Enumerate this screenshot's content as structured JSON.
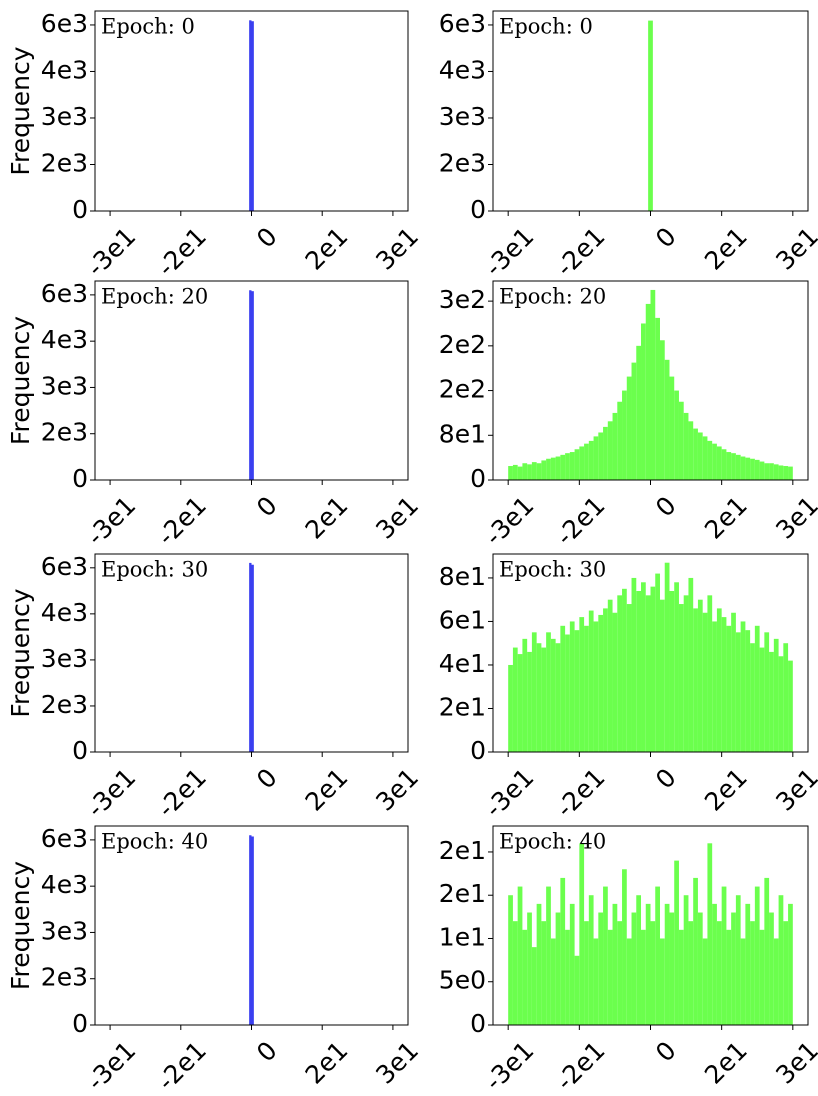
{
  "chart_data": [
    {
      "type": "histogram",
      "title": "Epoch: 0",
      "y_label": "Frequency",
      "color": "#3a3ff0",
      "bins": [
        -0.5,
        0,
        0.5
      ],
      "values": [
        6150,
        6120
      ],
      "xlim": [
        -33.2,
        33.2
      ],
      "ylim": [
        0,
        6450
      ],
      "xticks": [
        {
          "value": -30,
          "label": "-3e1"
        },
        {
          "value": -15,
          "label": "-2e1"
        },
        0,
        {
          "value": 15,
          "label": "2e1"
        },
        {
          "value": 30,
          "label": "3e1"
        }
      ],
      "yticks": [
        0,
        {
          "value": 1500,
          "label": "2e3"
        },
        {
          "value": 3000,
          "label": "3e3"
        },
        {
          "value": 4500,
          "label": "4e3"
        },
        {
          "value": 6000,
          "label": "6e3"
        }
      ]
    },
    {
      "type": "histogram",
      "title": "Epoch: 0",
      "color": "#6bff4d",
      "bins": [
        -0.5,
        0,
        0.5
      ],
      "values": [
        6140,
        6140
      ],
      "xlim": [
        -33.2,
        33.2
      ],
      "ylim": [
        0,
        6450
      ],
      "xticks": [
        {
          "value": -30,
          "label": "-3e1"
        },
        {
          "value": -15,
          "label": "-2e1"
        },
        0,
        {
          "value": 15,
          "label": "2e1"
        },
        {
          "value": 30,
          "label": "3e1"
        }
      ],
      "yticks": [
        0,
        {
          "value": 1500,
          "label": "2e3"
        },
        {
          "value": 3000,
          "label": "3e3"
        },
        {
          "value": 4500,
          "label": "4e3"
        },
        {
          "value": 6000,
          "label": "6e3"
        }
      ]
    },
    {
      "type": "histogram",
      "title": "Epoch: 20",
      "y_label": "Frequency",
      "color": "#3a3ff0",
      "bins": [
        -0.5,
        0,
        0.5
      ],
      "values": [
        6150,
        6120
      ],
      "xlim": [
        -33.2,
        33.2
      ],
      "ylim": [
        0,
        6450
      ],
      "xticks": [
        {
          "value": -30,
          "label": "-3e1"
        },
        {
          "value": -15,
          "label": "-2e1"
        },
        0,
        {
          "value": 15,
          "label": "2e1"
        },
        {
          "value": 30,
          "label": "3e1"
        }
      ],
      "yticks": [
        0,
        {
          "value": 1500,
          "label": "2e3"
        },
        {
          "value": 3000,
          "label": "3e3"
        },
        {
          "value": 4500,
          "label": "4e3"
        },
        {
          "value": 6000,
          "label": "6e3"
        }
      ]
    },
    {
      "type": "histogram",
      "title": "Epoch: 20",
      "color": "#6bff4d",
      "bins": [
        -30,
        -29,
        -28,
        -27,
        -26,
        -25,
        -24,
        -23,
        -22,
        -21,
        -20,
        -19,
        -18,
        -17,
        -16,
        -15,
        -14,
        -13,
        -12,
        -11,
        -10,
        -9,
        -8,
        -7,
        -6,
        -5,
        -4,
        -3,
        -2,
        -1,
        0,
        1,
        2,
        3,
        4,
        5,
        6,
        7,
        8,
        9,
        10,
        11,
        12,
        13,
        14,
        15,
        16,
        17,
        18,
        19,
        20,
        21,
        22,
        23,
        24,
        25,
        26,
        27,
        28,
        29,
        30
      ],
      "values": [
        25,
        27,
        24,
        30,
        28,
        32,
        30,
        35,
        38,
        40,
        42,
        45,
        48,
        50,
        55,
        60,
        65,
        70,
        78,
        85,
        95,
        105,
        120,
        140,
        160,
        185,
        210,
        240,
        280,
        315,
        340,
        290,
        250,
        215,
        185,
        160,
        140,
        120,
        105,
        92,
        85,
        78,
        70,
        65,
        60,
        55,
        50,
        48,
        45,
        42,
        40,
        38,
        36,
        33,
        30,
        30,
        28,
        26,
        25,
        24
      ],
      "xlim": [
        -33.2,
        33.2
      ],
      "ylim": [
        0,
        356
      ],
      "xticks": [
        {
          "value": -30,
          "label": "-3e1"
        },
        {
          "value": -15,
          "label": "-2e1"
        },
        0,
        {
          "value": 15,
          "label": "2e1"
        },
        {
          "value": 30,
          "label": "3e1"
        }
      ],
      "yticks": [
        0,
        {
          "value": 80,
          "label": "8e1"
        },
        {
          "value": 160,
          "label": "2e2"
        },
        {
          "value": 240,
          "label": "2e2"
        },
        {
          "value": 320,
          "label": "3e2"
        }
      ]
    },
    {
      "type": "histogram",
      "title": "Epoch: 30",
      "y_label": "Frequency",
      "color": "#3a3ff0",
      "bins": [
        -0.5,
        0,
        0.5
      ],
      "values": [
        6160,
        6100
      ],
      "xlim": [
        -33.2,
        33.2
      ],
      "ylim": [
        0,
        6450
      ],
      "xticks": [
        {
          "value": -30,
          "label": "-3e1"
        },
        {
          "value": -15,
          "label": "-2e1"
        },
        0,
        {
          "value": 15,
          "label": "2e1"
        },
        {
          "value": 30,
          "label": "3e1"
        }
      ],
      "yticks": [
        0,
        {
          "value": 1500,
          "label": "2e3"
        },
        {
          "value": 3000,
          "label": "3e3"
        },
        {
          "value": 4500,
          "label": "4e3"
        },
        {
          "value": 6000,
          "label": "6e3"
        }
      ]
    },
    {
      "type": "histogram",
      "title": "Epoch: 30",
      "color": "#6bff4d",
      "bins": [
        -30,
        -29,
        -28,
        -27,
        -26,
        -25,
        -24,
        -23,
        -22,
        -21,
        -20,
        -19,
        -18,
        -17,
        -16,
        -15,
        -14,
        -13,
        -12,
        -11,
        -10,
        -9,
        -8,
        -7,
        -6,
        -5,
        -4,
        -3,
        -2,
        -1,
        0,
        1,
        2,
        3,
        4,
        5,
        6,
        7,
        8,
        9,
        10,
        11,
        12,
        13,
        14,
        15,
        16,
        17,
        18,
        19,
        20,
        21,
        22,
        23,
        24,
        25,
        26,
        27,
        28,
        29,
        30
      ],
      "values": [
        40,
        48,
        45,
        52,
        46,
        55,
        50,
        48,
        55,
        52,
        50,
        58,
        54,
        60,
        56,
        62,
        58,
        65,
        60,
        63,
        66,
        70,
        64,
        72,
        75,
        68,
        80,
        74,
        78,
        72,
        76,
        82,
        70,
        87,
        74,
        78,
        68,
        72,
        80,
        66,
        70,
        64,
        72,
        60,
        66,
        62,
        58,
        64,
        55,
        60,
        56,
        50,
        58,
        48,
        55,
        46,
        52,
        44,
        50,
        42
      ],
      "xlim": [
        -33.2,
        33.2
      ],
      "ylim": [
        0,
        91
      ],
      "xticks": [
        {
          "value": -30,
          "label": "-3e1"
        },
        {
          "value": -15,
          "label": "-2e1"
        },
        0,
        {
          "value": 15,
          "label": "2e1"
        },
        {
          "value": 30,
          "label": "3e1"
        }
      ],
      "yticks": [
        0,
        {
          "value": 20,
          "label": "2e1"
        },
        {
          "value": 40,
          "label": "4e1"
        },
        {
          "value": 60,
          "label": "6e1"
        },
        {
          "value": 80,
          "label": "8e1"
        }
      ]
    },
    {
      "type": "histogram",
      "title": "Epoch: 40",
      "y_label": "Frequency",
      "color": "#3a3ff0",
      "bins": [
        -0.5,
        0,
        0.5
      ],
      "values": [
        6150,
        6110
      ],
      "xlim": [
        -33.2,
        33.2
      ],
      "ylim": [
        0,
        6450
      ],
      "xticks": [
        {
          "value": -30,
          "label": "-3e1"
        },
        {
          "value": -15,
          "label": "-2e1"
        },
        0,
        {
          "value": 15,
          "label": "2e1"
        },
        {
          "value": 30,
          "label": "3e1"
        }
      ],
      "yticks": [
        0,
        {
          "value": 1500,
          "label": "2e3"
        },
        {
          "value": 3000,
          "label": "3e3"
        },
        {
          "value": 4500,
          "label": "4e3"
        },
        {
          "value": 6000,
          "label": "6e3"
        }
      ]
    },
    {
      "type": "histogram",
      "title": "Epoch: 40",
      "color": "#6bff4d",
      "bins": [
        -30,
        -29,
        -28,
        -27,
        -26,
        -25,
        -24,
        -23,
        -22,
        -21,
        -20,
        -19,
        -18,
        -17,
        -16,
        -15,
        -14,
        -13,
        -12,
        -11,
        -10,
        -9,
        -8,
        -7,
        -6,
        -5,
        -4,
        -3,
        -2,
        -1,
        0,
        1,
        2,
        3,
        4,
        5,
        6,
        7,
        8,
        9,
        10,
        11,
        12,
        13,
        14,
        15,
        16,
        17,
        18,
        19,
        20,
        21,
        22,
        23,
        24,
        25,
        26,
        27,
        28,
        29,
        30
      ],
      "values": [
        15,
        12,
        16,
        11,
        13,
        9,
        14,
        12,
        16,
        10,
        13,
        17,
        11,
        14,
        8,
        21,
        12,
        15,
        10,
        13,
        16,
        11,
        14,
        12,
        18,
        10,
        13,
        15,
        11,
        14,
        12,
        16,
        10,
        14,
        13,
        19,
        11,
        15,
        12,
        17,
        13,
        10,
        21,
        14,
        12,
        16,
        11,
        13,
        15,
        10,
        14,
        12,
        16,
        11,
        17,
        13,
        10,
        15,
        12,
        14
      ],
      "xlim": [
        -33.2,
        33.2
      ],
      "ylim": [
        0,
        23
      ],
      "xticks": [
        {
          "value": -30,
          "label": "-3e1"
        },
        {
          "value": -15,
          "label": "-2e1"
        },
        0,
        {
          "value": 15,
          "label": "2e1"
        },
        {
          "value": 30,
          "label": "3e1"
        }
      ],
      "yticks": [
        0,
        {
          "value": 5,
          "label": "5e0"
        },
        {
          "value": 10,
          "label": "1e1"
        },
        {
          "value": 15,
          "label": "2e1"
        },
        {
          "value": 20,
          "label": "2e1"
        }
      ]
    }
  ]
}
